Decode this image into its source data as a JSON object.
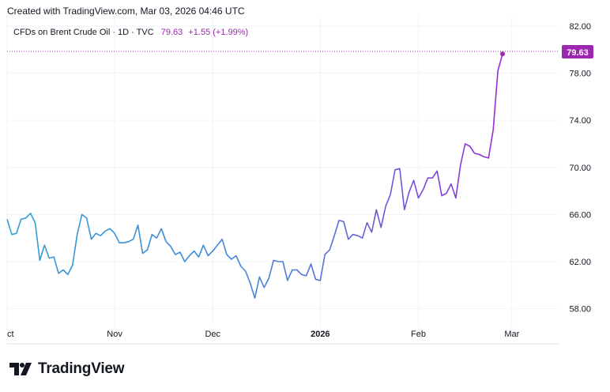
{
  "header": {
    "created_text": "Created with TradingView.com, Mar 03, 2026 04:46 UTC"
  },
  "legend": {
    "symbol": "CFDs on Brent Crude Oil · 1D · TVC",
    "last": "79.63",
    "change": "+1.55 (+1.99%)"
  },
  "price_tag": "79.63",
  "footer": {
    "brand": "TradingView"
  },
  "colors": {
    "line_start": "#2f9fd6",
    "line_end": "#9c27d8",
    "price": "#9c27b0",
    "grid": "#f0f3fa"
  },
  "chart_data": {
    "type": "line",
    "title": "CFDs on Brent Crude Oil · 1D · TVC",
    "ylim": [
      56.5,
      82.6
    ],
    "y_ticks": [
      58,
      62,
      66,
      70,
      74,
      78,
      82
    ],
    "y_tick_labels": [
      "58.00",
      "62.00",
      "66.00",
      "70.00",
      "74.00",
      "78.00",
      "82.00"
    ],
    "x_tick_labels": [
      {
        "label": "ct",
        "i": 0,
        "bold": false
      },
      {
        "label": "Nov",
        "i": 23,
        "bold": false
      },
      {
        "label": "Dec",
        "i": 44,
        "bold": false
      },
      {
        "label": "2026",
        "i": 67,
        "bold": true
      },
      {
        "label": "Feb",
        "i": 88,
        "bold": false
      },
      {
        "label": "Mar",
        "i": 108,
        "bold": false
      }
    ],
    "x_range": [
      0,
      118
    ],
    "values": [
      65.6,
      64.3,
      64.4,
      65.6,
      65.7,
      66.1,
      65.3,
      62.1,
      63.4,
      62.3,
      62.4,
      61.0,
      61.3,
      60.9,
      61.7,
      64.3,
      66.0,
      65.7,
      63.9,
      64.4,
      64.2,
      64.6,
      64.8,
      64.4,
      63.6,
      63.6,
      63.7,
      63.9,
      65.1,
      62.7,
      63.0,
      64.3,
      64.0,
      64.8,
      63.7,
      63.3,
      62.6,
      62.8,
      62.0,
      62.5,
      62.9,
      62.4,
      63.4,
      62.5,
      62.9,
      63.4,
      63.9,
      62.6,
      62.2,
      62.5,
      61.6,
      61.2,
      60.2,
      58.9,
      60.7,
      59.8,
      60.6,
      62.1,
      62.0,
      62.0,
      60.4,
      61.3,
      61.3,
      60.9,
      60.8,
      61.8,
      60.5,
      60.4,
      62.6,
      63.0,
      64.2,
      65.5,
      65.4,
      63.9,
      64.3,
      64.2,
      64.0,
      65.3,
      64.5,
      66.4,
      64.9,
      66.7,
      67.7,
      69.8,
      69.9,
      66.4,
      67.9,
      68.9,
      67.4,
      68.1,
      69.1,
      69.1,
      69.7,
      67.6,
      67.8,
      68.6,
      67.4,
      70.2,
      72.0,
      71.8,
      71.2,
      71.1,
      70.9,
      70.8,
      73.2,
      78.2,
      79.63
    ]
  }
}
